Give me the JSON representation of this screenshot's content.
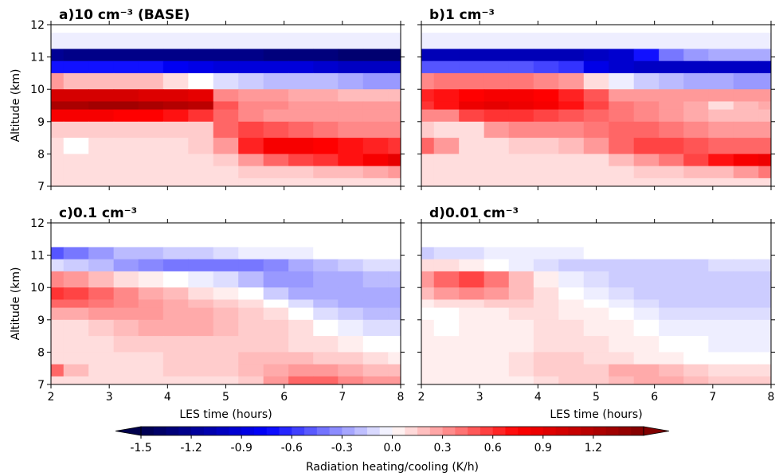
{
  "chart_data": {
    "type": "heatmap",
    "panels": [
      {
        "title": "a)10 cm⁻³ (BASE)",
        "grid": [
          [
            0.0,
            0.0,
            0.0,
            0.0,
            0.0,
            0.0,
            0.0,
            0.0,
            0.0,
            0.0,
            0.0,
            0.0,
            0.0,
            0.0,
            0.0
          ],
          [
            -0.05,
            -0.05,
            -0.05,
            -0.05,
            -0.05,
            -0.05,
            -0.05,
            -0.05,
            -0.05,
            -0.05,
            -0.05,
            -0.05,
            -0.05,
            -0.05,
            -0.05
          ],
          [
            -1.2,
            -1.25,
            -1.25,
            -1.25,
            -1.25,
            -1.25,
            -1.25,
            -1.25,
            -1.25,
            -1.3,
            -1.3,
            -1.3,
            -1.35,
            -1.35,
            -1.35
          ],
          [
            -0.7,
            -0.7,
            -0.7,
            -0.7,
            -0.7,
            -0.8,
            -0.85,
            -0.9,
            -0.9,
            -0.9,
            -0.9,
            -0.95,
            -1.0,
            -1.0,
            -1.0
          ],
          [
            0.3,
            0.2,
            0.2,
            0.2,
            0.2,
            0.1,
            0.0,
            -0.1,
            -0.15,
            -0.2,
            -0.2,
            -0.2,
            -0.25,
            -0.3,
            -0.3
          ],
          [
            1.0,
            1.0,
            1.0,
            1.0,
            0.95,
            0.95,
            0.9,
            0.35,
            0.3,
            0.3,
            0.25,
            0.25,
            0.2,
            0.2,
            0.2
          ],
          [
            1.25,
            1.25,
            1.3,
            1.3,
            1.25,
            1.2,
            1.15,
            0.5,
            0.35,
            0.35,
            0.3,
            0.3,
            0.3,
            0.3,
            0.3
          ],
          [
            0.8,
            0.8,
            0.8,
            0.75,
            0.75,
            0.7,
            0.6,
            0.45,
            0.35,
            0.3,
            0.3,
            0.3,
            0.3,
            0.3,
            0.3
          ],
          [
            0.15,
            0.15,
            0.15,
            0.15,
            0.15,
            0.15,
            0.15,
            0.45,
            0.55,
            0.5,
            0.45,
            0.4,
            0.35,
            0.35,
            0.35
          ],
          [
            0.1,
            0.0,
            0.1,
            0.1,
            0.1,
            0.1,
            0.15,
            0.3,
            0.65,
            0.8,
            0.8,
            0.75,
            0.7,
            0.65,
            0.6
          ],
          [
            0.1,
            0.1,
            0.1,
            0.1,
            0.1,
            0.1,
            0.1,
            0.15,
            0.3,
            0.45,
            0.55,
            0.6,
            0.7,
            0.8,
            0.9
          ],
          [
            0.1,
            0.1,
            0.1,
            0.1,
            0.1,
            0.1,
            0.1,
            0.1,
            0.15,
            0.15,
            0.15,
            0.2,
            0.2,
            0.25,
            0.3
          ],
          [
            0.1,
            0.1,
            0.1,
            0.1,
            0.1,
            0.1,
            0.1,
            0.1,
            0.1,
            0.1,
            0.1,
            0.1,
            0.1,
            0.1,
            0.1
          ]
        ]
      },
      {
        "title": "b)1 cm⁻³",
        "grid": [
          [
            0.0,
            0.0,
            0.0,
            0.0,
            0.0,
            0.0,
            0.0,
            0.0,
            0.0,
            0.0,
            0.0,
            0.0,
            0.0,
            0.0,
            0.0
          ],
          [
            -0.05,
            -0.05,
            -0.05,
            -0.05,
            -0.05,
            -0.05,
            -0.05,
            -0.05,
            -0.05,
            -0.05,
            -0.05,
            -0.05,
            -0.05,
            -0.05,
            -0.05
          ],
          [
            -1.05,
            -1.05,
            -1.05,
            -1.05,
            -1.05,
            -1.05,
            -1.05,
            -1.0,
            -0.95,
            -0.7,
            -0.4,
            -0.3,
            -0.25,
            -0.25,
            -0.25
          ],
          [
            -0.5,
            -0.5,
            -0.5,
            -0.5,
            -0.5,
            -0.55,
            -0.6,
            -0.85,
            -0.95,
            -1.0,
            -1.0,
            -1.0,
            -1.0,
            -1.0,
            -1.0
          ],
          [
            0.35,
            0.4,
            0.4,
            0.4,
            0.4,
            0.35,
            0.3,
            0.1,
            -0.05,
            -0.15,
            -0.2,
            -0.25,
            -0.25,
            -0.3,
            -0.3
          ],
          [
            0.65,
            0.7,
            0.75,
            0.8,
            0.8,
            0.75,
            0.65,
            0.5,
            0.3,
            0.3,
            0.3,
            0.3,
            0.3,
            0.3,
            0.3
          ],
          [
            0.6,
            0.7,
            0.85,
            0.9,
            0.85,
            0.8,
            0.7,
            0.55,
            0.4,
            0.35,
            0.3,
            0.25,
            0.1,
            0.2,
            0.25
          ],
          [
            0.35,
            0.35,
            0.55,
            0.6,
            0.6,
            0.55,
            0.5,
            0.45,
            0.4,
            0.35,
            0.3,
            0.25,
            0.2,
            0.2,
            0.2
          ],
          [
            0.15,
            0.1,
            0.1,
            0.3,
            0.35,
            0.35,
            0.35,
            0.4,
            0.45,
            0.45,
            0.4,
            0.35,
            0.3,
            0.3,
            0.3
          ],
          [
            0.45,
            0.3,
            0.1,
            0.1,
            0.15,
            0.15,
            0.2,
            0.3,
            0.45,
            0.55,
            0.55,
            0.5,
            0.45,
            0.45,
            0.45
          ],
          [
            0.1,
            0.1,
            0.1,
            0.1,
            0.1,
            0.1,
            0.1,
            0.1,
            0.2,
            0.3,
            0.4,
            0.55,
            0.7,
            0.8,
            0.85
          ],
          [
            0.1,
            0.1,
            0.1,
            0.1,
            0.1,
            0.1,
            0.1,
            0.1,
            0.1,
            0.15,
            0.15,
            0.2,
            0.2,
            0.3,
            0.4
          ],
          [
            0.1,
            0.1,
            0.1,
            0.1,
            0.1,
            0.1,
            0.1,
            0.1,
            0.1,
            0.1,
            0.1,
            0.1,
            0.1,
            0.1,
            0.1
          ]
        ]
      },
      {
        "title": "c)0.1 cm⁻³",
        "grid": [
          [
            0.0,
            0.0,
            0.0,
            0.0,
            0.0,
            0.0,
            0.0,
            0.0,
            0.0,
            0.0,
            0.0,
            0.0,
            0.0,
            0.0,
            0.0
          ],
          [
            0.0,
            0.0,
            0.0,
            0.0,
            0.0,
            0.0,
            0.0,
            0.0,
            0.0,
            0.0,
            0.0,
            0.0,
            0.0,
            0.0,
            0.0
          ],
          [
            -0.5,
            -0.4,
            -0.3,
            -0.2,
            -0.2,
            -0.15,
            -0.15,
            -0.1,
            -0.05,
            -0.05,
            -0.05,
            0.0,
            0.0,
            0.0,
            0.0
          ],
          [
            -0.1,
            -0.15,
            -0.2,
            -0.3,
            -0.35,
            -0.4,
            -0.4,
            -0.4,
            -0.4,
            -0.35,
            -0.25,
            -0.2,
            -0.15,
            -0.1,
            -0.1
          ],
          [
            0.35,
            0.3,
            0.2,
            0.1,
            0.05,
            0.0,
            -0.05,
            -0.1,
            -0.2,
            -0.3,
            -0.3,
            -0.25,
            -0.25,
            -0.2,
            -0.2
          ],
          [
            0.6,
            0.55,
            0.45,
            0.35,
            0.25,
            0.2,
            0.1,
            0.05,
            0.0,
            -0.15,
            -0.25,
            -0.25,
            -0.25,
            -0.25,
            -0.25
          ],
          [
            0.45,
            0.45,
            0.4,
            0.35,
            0.3,
            0.25,
            0.2,
            0.15,
            0.1,
            0.0,
            -0.1,
            -0.2,
            -0.25,
            -0.25,
            -0.25
          ],
          [
            0.25,
            0.25,
            0.3,
            0.3,
            0.3,
            0.25,
            0.25,
            0.2,
            0.15,
            0.1,
            0.0,
            -0.1,
            -0.15,
            -0.2,
            -0.2
          ],
          [
            0.1,
            0.1,
            0.15,
            0.2,
            0.25,
            0.25,
            0.25,
            0.2,
            0.15,
            0.15,
            0.1,
            0.0,
            -0.05,
            -0.1,
            -0.1
          ],
          [
            0.1,
            0.1,
            0.1,
            0.15,
            0.15,
            0.15,
            0.15,
            0.15,
            0.15,
            0.15,
            0.1,
            0.1,
            0.05,
            0.0,
            0.0
          ],
          [
            0.1,
            0.1,
            0.1,
            0.1,
            0.1,
            0.15,
            0.15,
            0.15,
            0.2,
            0.2,
            0.2,
            0.15,
            0.15,
            0.1,
            0.05
          ],
          [
            0.45,
            0.2,
            0.1,
            0.1,
            0.1,
            0.15,
            0.15,
            0.15,
            0.2,
            0.25,
            0.3,
            0.3,
            0.25,
            0.2,
            0.2
          ],
          [
            0.1,
            0.1,
            0.1,
            0.1,
            0.1,
            0.1,
            0.1,
            0.1,
            0.15,
            0.3,
            0.45,
            0.45,
            0.35,
            0.3,
            0.3
          ]
        ]
      },
      {
        "title": "d)0.01 cm⁻³",
        "grid": [
          [
            0.0,
            0.0,
            0.0,
            0.0,
            0.0,
            0.0,
            0.0,
            0.0,
            0.0,
            0.0,
            0.0,
            0.0,
            0.0,
            0.0,
            0.0
          ],
          [
            0.0,
            0.0,
            0.0,
            0.0,
            0.0,
            0.0,
            0.0,
            0.0,
            0.0,
            0.0,
            0.0,
            0.0,
            0.0,
            0.0,
            0.0
          ],
          [
            -0.15,
            -0.1,
            -0.1,
            -0.05,
            -0.05,
            -0.05,
            -0.05,
            0.0,
            0.0,
            0.0,
            0.0,
            0.0,
            0.0,
            0.0,
            0.0
          ],
          [
            0.1,
            0.1,
            0.05,
            0.0,
            -0.05,
            -0.1,
            -0.15,
            -0.15,
            -0.15,
            -0.15,
            -0.15,
            -0.15,
            -0.1,
            -0.1,
            -0.1
          ],
          [
            0.3,
            0.45,
            0.55,
            0.4,
            0.2,
            0.05,
            -0.05,
            -0.1,
            -0.15,
            -0.15,
            -0.15,
            -0.15,
            -0.15,
            -0.15,
            -0.15
          ],
          [
            0.2,
            0.3,
            0.35,
            0.3,
            0.2,
            0.1,
            0.0,
            -0.05,
            -0.1,
            -0.15,
            -0.15,
            -0.15,
            -0.15,
            -0.15,
            -0.15
          ],
          [
            0.05,
            0.1,
            0.1,
            0.15,
            0.15,
            0.1,
            0.05,
            0.0,
            -0.05,
            -0.1,
            -0.15,
            -0.15,
            -0.15,
            -0.15,
            -0.15
          ],
          [
            0.0,
            0.0,
            0.05,
            0.05,
            0.1,
            0.1,
            0.05,
            0.05,
            0.0,
            -0.05,
            -0.1,
            -0.1,
            -0.1,
            -0.1,
            -0.1
          ],
          [
            0.05,
            0.0,
            0.05,
            0.05,
            0.05,
            0.1,
            0.1,
            0.05,
            0.05,
            0.0,
            -0.05,
            -0.05,
            -0.05,
            -0.05,
            -0.05
          ],
          [
            0.05,
            0.05,
            0.05,
            0.05,
            0.05,
            0.1,
            0.1,
            0.1,
            0.05,
            0.05,
            0.0,
            0.0,
            -0.05,
            -0.05,
            -0.05
          ],
          [
            0.05,
            0.05,
            0.05,
            0.05,
            0.1,
            0.15,
            0.15,
            0.1,
            0.1,
            0.05,
            0.05,
            0.0,
            0.0,
            0.0,
            0.0
          ],
          [
            0.05,
            0.05,
            0.05,
            0.05,
            0.1,
            0.15,
            0.15,
            0.15,
            0.25,
            0.25,
            0.2,
            0.15,
            0.1,
            0.1,
            0.1
          ],
          [
            0.05,
            0.05,
            0.05,
            0.05,
            0.05,
            0.1,
            0.15,
            0.15,
            0.2,
            0.25,
            0.25,
            0.2,
            0.15,
            0.15,
            0.15
          ]
        ]
      }
    ],
    "x": [
      2.0,
      2.43,
      2.86,
      3.29,
      3.71,
      4.14,
      4.57,
      5.0,
      5.43,
      5.86,
      6.29,
      6.71,
      7.14,
      7.57,
      8.0
    ],
    "y": [
      12.0,
      11.5,
      11.0,
      10.75,
      10.25,
      9.75,
      9.5,
      9.25,
      8.75,
      8.25,
      7.75,
      7.5,
      7.0
    ],
    "xlim": [
      2,
      8
    ],
    "ylim": [
      7,
      12
    ],
    "xticks": [
      "2",
      "3",
      "4",
      "5",
      "6",
      "7",
      "8"
    ],
    "yticks": [
      "7",
      "8",
      "9",
      "10",
      "11",
      "12"
    ],
    "xlabel": "LES time (hours)",
    "ylabel": "Altitude (km)",
    "colorbar": {
      "label": "Radiation heating/cooling (K/h)",
      "min": -1.5,
      "max": 1.5,
      "ticks": [
        "-1.5",
        "-1.2",
        "-0.9",
        "-0.6",
        "-0.3",
        "0.0",
        "0.3",
        "0.6",
        "0.9",
        "1.2"
      ],
      "tick_values": [
        -1.5,
        -1.2,
        -0.9,
        -0.6,
        -0.3,
        0.0,
        0.3,
        0.6,
        0.9,
        1.2
      ],
      "extend": "both",
      "colormap": "seismic"
    }
  }
}
